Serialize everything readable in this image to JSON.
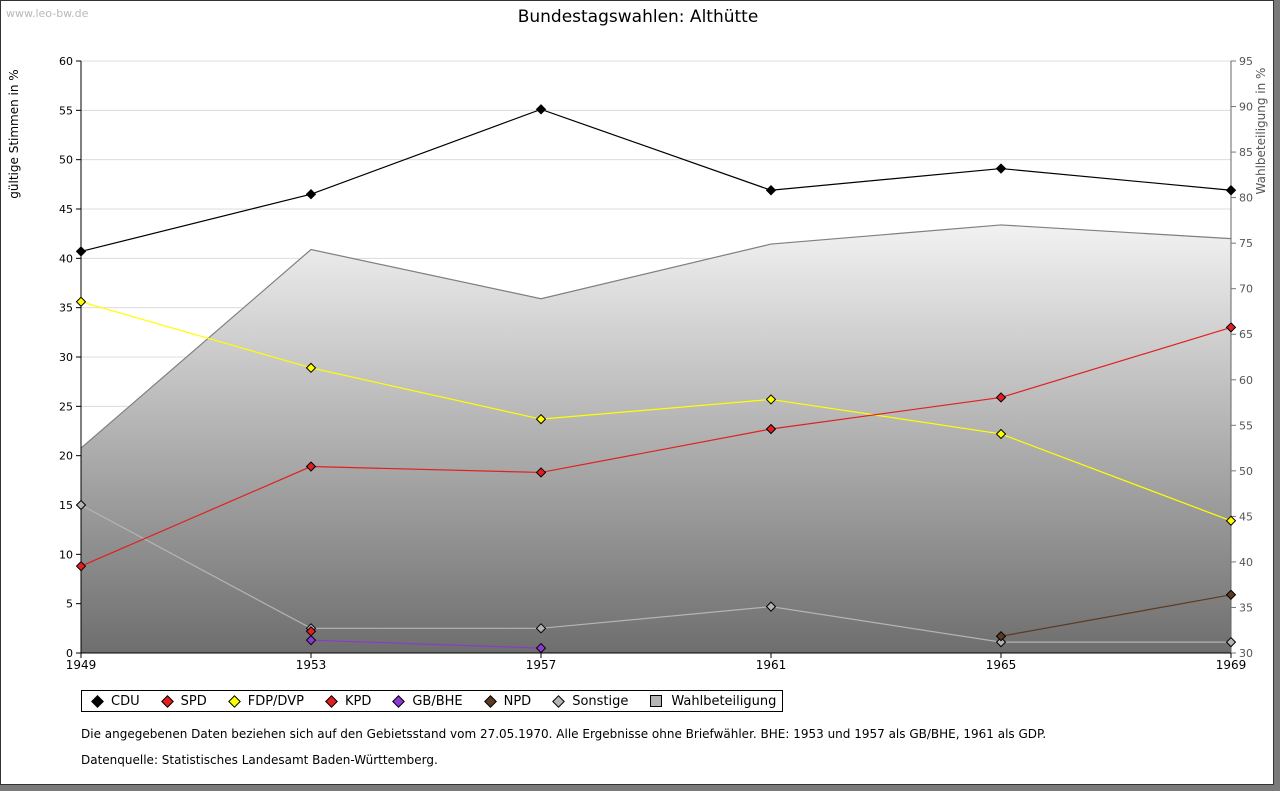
{
  "watermark": "www.leo-bw.de",
  "chart_data": {
    "type": "line",
    "title": "Bundestagswahlen: Althütte",
    "ylabel": "gültige Stimmen in %",
    "y2label": "Wahlbeteiligung in %",
    "ylim": [
      0,
      60
    ],
    "y2lim": [
      30,
      95
    ],
    "yticks": [
      0,
      5,
      10,
      15,
      20,
      25,
      30,
      35,
      40,
      45,
      50,
      55,
      60
    ],
    "y2ticks": [
      30,
      35,
      40,
      45,
      50,
      55,
      60,
      65,
      70,
      75,
      80,
      85,
      90,
      95
    ],
    "x": [
      "1949",
      "1953",
      "1957",
      "1961",
      "1965",
      "1969"
    ],
    "area": {
      "name": "Wahlbeteiligung",
      "values": [
        52.5,
        74.3,
        68.9,
        74.9,
        77.0,
        75.5
      ],
      "color": "#7f7f7f"
    },
    "series": [
      {
        "name": "CDU",
        "color": "#000000",
        "values": [
          40.7,
          46.5,
          55.1,
          46.9,
          49.1,
          46.9
        ]
      },
      {
        "name": "SPD",
        "color": "#e02020",
        "values": [
          8.8,
          18.9,
          18.3,
          22.7,
          25.9,
          33.0
        ]
      },
      {
        "name": "FDP/DVP",
        "color": "#ffff00",
        "values": [
          35.6,
          28.9,
          23.7,
          25.7,
          22.2,
          13.4
        ]
      },
      {
        "name": "KPD",
        "color": "#e02020",
        "values": [
          null,
          2.2,
          null,
          null,
          null,
          null
        ]
      },
      {
        "name": "GB/BHE",
        "color": "#8a3ad0",
        "values": [
          null,
          1.3,
          0.5,
          null,
          null,
          null
        ]
      },
      {
        "name": "NPD",
        "color": "#5c3a22",
        "values": [
          null,
          null,
          null,
          null,
          1.7,
          5.9
        ]
      },
      {
        "name": "Sonstige",
        "color": "#b4b4b4",
        "values": [
          15.0,
          2.5,
          2.5,
          4.7,
          1.1,
          1.1
        ]
      }
    ],
    "legend": [
      "CDU",
      "SPD",
      "FDP/DVP",
      "KPD",
      "GB/BHE",
      "NPD",
      "Sonstige",
      "Wahlbeteiligung"
    ],
    "legend_colors": [
      "#000000",
      "#e02020",
      "#ffff00",
      "#e02020",
      "#8a3ad0",
      "#5c3a22",
      "#b4b4b4",
      "#b5b5b5"
    ]
  },
  "notes": {
    "line1": "Die angegebenen Daten beziehen sich auf den Gebietsstand vom 27.05.1970. Alle Ergebnisse ohne Briefwähler. BHE: 1953 und 1957 als GB/BHE, 1961 als GDP.",
    "line2": "Datenquelle: Statistisches Landesamt Baden-Württemberg."
  }
}
